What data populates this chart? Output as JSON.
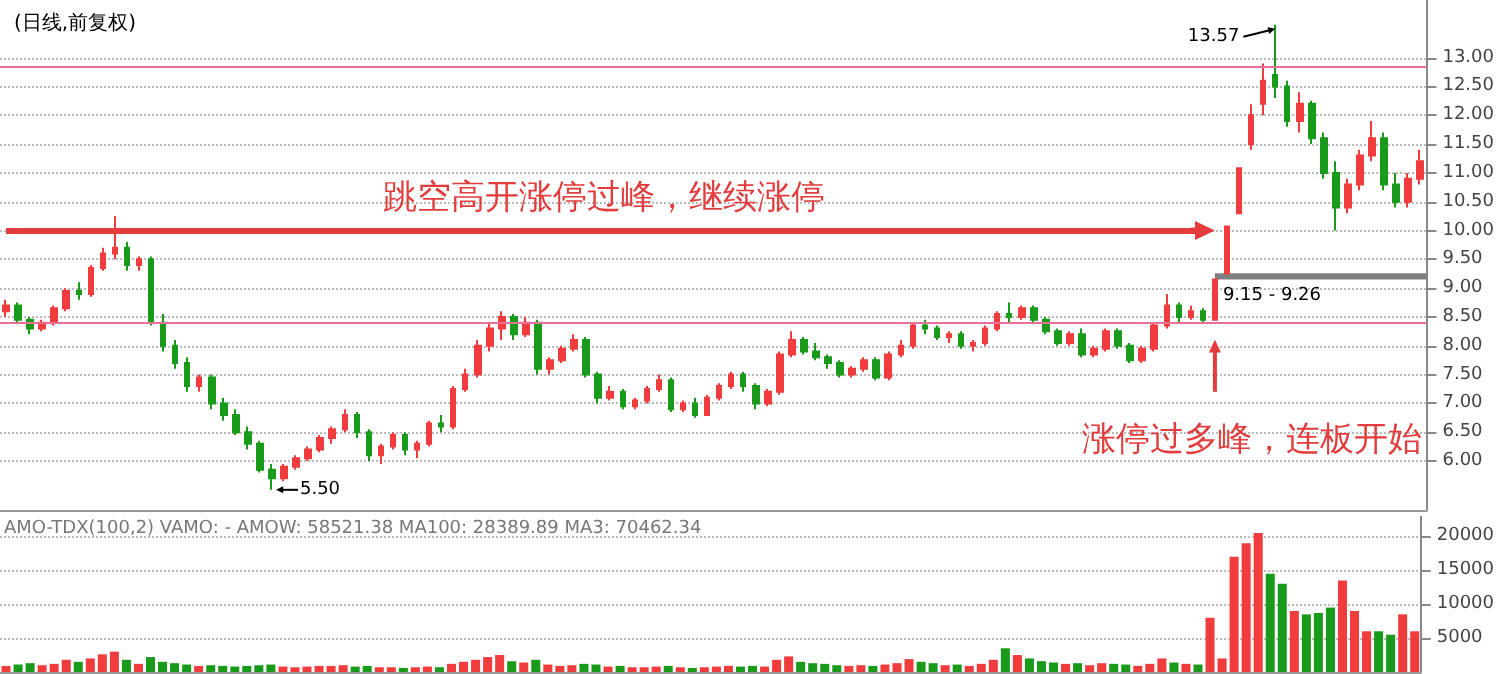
{
  "chart_data": [
    {
      "type": "candlestick",
      "title": "(日线,前复权)",
      "categories": [
        null,
        null,
        null,
        null,
        null,
        null,
        null,
        null,
        null,
        null,
        null,
        null,
        null,
        null,
        null,
        null,
        null,
        null,
        null,
        null,
        null,
        null,
        null,
        null,
        null,
        null,
        null,
        null,
        null,
        null,
        null,
        null,
        null,
        null,
        null,
        null,
        null,
        null,
        null,
        null,
        null,
        null,
        null,
        null,
        null,
        null,
        null,
        null,
        null,
        null,
        null,
        null,
        null,
        null,
        null,
        null,
        null,
        null,
        null,
        null,
        null,
        null,
        null,
        null,
        null,
        null,
        null,
        null,
        null,
        null,
        null,
        null,
        null,
        null,
        null,
        null,
        null,
        null,
        null,
        null,
        null,
        null,
        null,
        null,
        null,
        null,
        null,
        null,
        null,
        null,
        null,
        null,
        null,
        null,
        null,
        null,
        null,
        null,
        null,
        null,
        null,
        null,
        null,
        null,
        null,
        null,
        null,
        null,
        null,
        null,
        null,
        null,
        null,
        null,
        null,
        null,
        null,
        null
      ],
      "ohlc": [
        [
          8.6,
          8.8,
          8.5,
          8.7
        ],
        [
          8.7,
          8.75,
          8.4,
          8.45
        ],
        [
          8.45,
          8.5,
          8.2,
          8.3
        ],
        [
          8.3,
          8.45,
          8.25,
          8.4
        ],
        [
          8.4,
          8.7,
          8.35,
          8.65
        ],
        [
          8.65,
          9.0,
          8.6,
          8.95
        ],
        [
          8.95,
          9.1,
          8.8,
          8.9
        ],
        [
          8.9,
          9.4,
          8.85,
          9.35
        ],
        [
          9.35,
          9.7,
          9.3,
          9.6
        ],
        [
          9.6,
          10.25,
          9.5,
          9.7
        ],
        [
          9.7,
          9.8,
          9.3,
          9.4
        ],
        [
          9.4,
          9.55,
          9.3,
          9.5
        ],
        [
          9.5,
          9.55,
          8.35,
          8.4
        ],
        [
          8.4,
          8.55,
          7.9,
          8.0
        ],
        [
          8.0,
          8.1,
          7.6,
          7.7
        ],
        [
          7.7,
          7.8,
          7.2,
          7.3
        ],
        [
          7.3,
          7.5,
          7.2,
          7.45
        ],
        [
          7.45,
          7.5,
          6.9,
          7.0
        ],
        [
          7.0,
          7.1,
          6.7,
          6.8
        ],
        [
          6.8,
          6.9,
          6.45,
          6.5
        ],
        [
          6.5,
          6.6,
          6.2,
          6.3
        ],
        [
          6.3,
          6.35,
          5.8,
          5.85
        ],
        [
          5.85,
          5.95,
          5.5,
          5.7
        ],
        [
          5.7,
          5.95,
          5.65,
          5.9
        ],
        [
          5.9,
          6.1,
          5.85,
          6.05
        ],
        [
          6.05,
          6.25,
          6.0,
          6.2
        ],
        [
          6.2,
          6.45,
          6.15,
          6.4
        ],
        [
          6.4,
          6.6,
          6.3,
          6.55
        ],
        [
          6.55,
          6.9,
          6.5,
          6.8
        ],
        [
          6.8,
          6.85,
          6.4,
          6.5
        ],
        [
          6.5,
          6.55,
          6.0,
          6.1
        ],
        [
          6.1,
          6.3,
          5.95,
          6.25
        ],
        [
          6.25,
          6.5,
          6.2,
          6.45
        ],
        [
          6.45,
          6.5,
          6.1,
          6.2
        ],
        [
          6.2,
          6.35,
          6.05,
          6.3
        ],
        [
          6.3,
          6.7,
          6.25,
          6.65
        ],
        [
          6.65,
          6.8,
          6.5,
          6.6
        ],
        [
          6.6,
          7.3,
          6.55,
          7.25
        ],
        [
          7.25,
          7.6,
          7.2,
          7.5
        ],
        [
          7.5,
          8.1,
          7.45,
          8.0
        ],
        [
          8.0,
          8.4,
          7.9,
          8.3
        ],
        [
          8.3,
          8.6,
          8.1,
          8.5
        ],
        [
          8.5,
          8.55,
          8.1,
          8.2
        ],
        [
          8.2,
          8.5,
          8.15,
          8.4
        ],
        [
          8.4,
          8.45,
          7.5,
          7.6
        ],
        [
          7.6,
          7.8,
          7.5,
          7.75
        ],
        [
          7.75,
          8.0,
          7.7,
          7.95
        ],
        [
          7.95,
          8.2,
          7.9,
          8.1
        ],
        [
          8.1,
          8.15,
          7.45,
          7.5
        ],
        [
          7.5,
          7.55,
          7.0,
          7.1
        ],
        [
          7.1,
          7.3,
          7.05,
          7.2
        ],
        [
          7.2,
          7.25,
          6.9,
          6.95
        ],
        [
          6.95,
          7.1,
          6.9,
          7.05
        ],
        [
          7.05,
          7.3,
          7.0,
          7.25
        ],
        [
          7.25,
          7.5,
          7.2,
          7.4
        ],
        [
          7.4,
          7.45,
          6.85,
          6.9
        ],
        [
          6.9,
          7.05,
          6.85,
          7.0
        ],
        [
          7.0,
          7.1,
          6.75,
          6.8
        ],
        [
          6.8,
          7.15,
          6.8,
          7.1
        ],
        [
          7.1,
          7.35,
          7.05,
          7.3
        ],
        [
          7.3,
          7.55,
          7.25,
          7.5
        ],
        [
          7.5,
          7.55,
          7.2,
          7.3
        ],
        [
          7.3,
          7.35,
          6.9,
          7.0
        ],
        [
          7.0,
          7.25,
          6.95,
          7.2
        ],
        [
          7.2,
          7.9,
          7.15,
          7.85
        ],
        [
          7.85,
          8.25,
          7.8,
          8.1
        ],
        [
          8.1,
          8.15,
          7.85,
          7.9
        ],
        [
          7.9,
          8.05,
          7.75,
          7.8
        ],
        [
          7.8,
          7.85,
          7.6,
          7.7
        ],
        [
          7.7,
          7.75,
          7.45,
          7.5
        ],
        [
          7.5,
          7.65,
          7.45,
          7.6
        ],
        [
          7.6,
          7.8,
          7.55,
          7.75
        ],
        [
          7.75,
          7.8,
          7.4,
          7.45
        ],
        [
          7.45,
          7.9,
          7.4,
          7.85
        ],
        [
          7.85,
          8.1,
          7.8,
          8.0
        ],
        [
          8.0,
          8.4,
          7.95,
          8.35
        ],
        [
          8.35,
          8.45,
          8.2,
          8.3
        ],
        [
          8.3,
          8.35,
          8.1,
          8.15
        ],
        [
          8.15,
          8.25,
          8.05,
          8.2
        ],
        [
          8.2,
          8.25,
          7.95,
          8.0
        ],
        [
          8.0,
          8.1,
          7.9,
          8.05
        ],
        [
          8.05,
          8.35,
          8.0,
          8.3
        ],
        [
          8.3,
          8.6,
          8.25,
          8.55
        ],
        [
          8.55,
          8.75,
          8.4,
          8.5
        ],
        [
          8.5,
          8.7,
          8.45,
          8.65
        ],
        [
          8.65,
          8.7,
          8.4,
          8.45
        ],
        [
          8.45,
          8.5,
          8.2,
          8.25
        ],
        [
          8.25,
          8.3,
          8.0,
          8.05
        ],
        [
          8.05,
          8.25,
          8.0,
          8.2
        ],
        [
          8.2,
          8.3,
          7.8,
          7.85
        ],
        [
          7.85,
          8.0,
          7.8,
          7.95
        ],
        [
          7.95,
          8.3,
          7.9,
          8.25
        ],
        [
          8.25,
          8.3,
          7.95,
          8.0
        ],
        [
          8.0,
          8.05,
          7.7,
          7.75
        ],
        [
          7.75,
          8.0,
          7.7,
          7.95
        ],
        [
          7.95,
          8.4,
          7.9,
          8.35
        ],
        [
          8.35,
          8.9,
          8.3,
          8.7
        ],
        [
          8.7,
          8.75,
          8.4,
          8.5
        ],
        [
          8.5,
          8.7,
          8.45,
          8.6
        ],
        [
          8.6,
          8.65,
          8.4,
          8.45
        ],
        [
          8.45,
          9.15,
          8.45,
          9.15
        ],
        [
          9.26,
          10.07,
          9.26,
          10.07
        ],
        [
          10.3,
          11.08,
          10.3,
          11.08
        ],
        [
          11.5,
          12.19,
          11.4,
          12.0
        ],
        [
          12.2,
          12.9,
          12.0,
          12.6
        ],
        [
          12.7,
          13.57,
          12.3,
          12.5
        ],
        [
          12.5,
          12.6,
          11.8,
          11.9
        ],
        [
          11.9,
          12.4,
          11.7,
          12.2
        ],
        [
          12.2,
          12.25,
          11.5,
          11.6
        ],
        [
          11.6,
          11.7,
          10.9,
          11.0
        ],
        [
          11.0,
          11.2,
          10.0,
          10.4
        ],
        [
          10.4,
          10.9,
          10.3,
          10.8
        ],
        [
          10.8,
          11.4,
          10.7,
          11.3
        ],
        [
          11.3,
          11.9,
          11.2,
          11.6
        ],
        [
          11.6,
          11.7,
          10.7,
          10.8
        ],
        [
          10.8,
          11.0,
          10.4,
          10.5
        ],
        [
          10.5,
          11.0,
          10.4,
          10.9
        ],
        [
          10.9,
          11.4,
          10.8,
          11.2
        ]
      ],
      "colors": [
        "#f03c3c",
        "#1a9a1a",
        "#1a9a1a",
        "#f03c3c",
        "#f03c3c",
        "#f03c3c",
        "#1a9a1a",
        "#f03c3c",
        "#f03c3c",
        "#f03c3c",
        "#1a9a1a",
        "#f03c3c",
        "#1a9a1a",
        "#1a9a1a",
        "#1a9a1a",
        "#1a9a1a",
        "#f03c3c",
        "#1a9a1a",
        "#1a9a1a",
        "#1a9a1a",
        "#1a9a1a",
        "#1a9a1a",
        "#1a9a1a",
        "#f03c3c",
        "#f03c3c",
        "#f03c3c",
        "#f03c3c",
        "#f03c3c",
        "#f03c3c",
        "#1a9a1a",
        "#1a9a1a",
        "#f03c3c",
        "#f03c3c",
        "#1a9a1a",
        "#f03c3c",
        "#f03c3c",
        "#1a9a1a",
        "#f03c3c",
        "#f03c3c",
        "#f03c3c",
        "#f03c3c",
        "#f03c3c",
        "#1a9a1a",
        "#f03c3c",
        "#1a9a1a",
        "#f03c3c",
        "#f03c3c",
        "#f03c3c",
        "#1a9a1a",
        "#1a9a1a",
        "#f03c3c",
        "#1a9a1a",
        "#f03c3c",
        "#f03c3c",
        "#f03c3c",
        "#1a9a1a",
        "#f03c3c",
        "#1a9a1a",
        "#f03c3c",
        "#f03c3c",
        "#f03c3c",
        "#1a9a1a",
        "#1a9a1a",
        "#f03c3c",
        "#f03c3c",
        "#f03c3c",
        "#1a9a1a",
        "#1a9a1a",
        "#1a9a1a",
        "#1a9a1a",
        "#f03c3c",
        "#f03c3c",
        "#1a9a1a",
        "#f03c3c",
        "#f03c3c",
        "#f03c3c",
        "#1a9a1a",
        "#1a9a1a",
        "#f03c3c",
        "#1a9a1a",
        "#f03c3c",
        "#f03c3c",
        "#f03c3c",
        "#1a9a1a",
        "#f03c3c",
        "#1a9a1a",
        "#1a9a1a",
        "#1a9a1a",
        "#f03c3c",
        "#1a9a1a",
        "#f03c3c",
        "#f03c3c",
        "#1a9a1a",
        "#1a9a1a",
        "#f03c3c",
        "#f03c3c",
        "#f03c3c",
        "#1a9a1a",
        "#f03c3c",
        "#1a9a1a",
        "#f03c3c",
        "#f03c3c",
        "#f03c3c",
        "#f03c3c",
        "#f03c3c",
        "#1a9a1a",
        "#1a9a1a",
        "#f03c3c",
        "#1a9a1a",
        "#1a9a1a",
        "#1a9a1a",
        "#f03c3c",
        "#f03c3c",
        "#f03c3c",
        "#1a9a1a",
        "#1a9a1a",
        "#f03c3c",
        "#f03c3c"
      ],
      "ylim": [
        5.15,
        14
      ],
      "yticks": [
        {
          "value": 6,
          "label": "6.00"
        },
        {
          "value": 6.5,
          "label": "6.50"
        },
        {
          "value": 7,
          "label": "7.00"
        },
        {
          "value": 7.5,
          "label": "7.50"
        },
        {
          "value": 8,
          "label": "8.00"
        },
        {
          "value": 8.5,
          "label": "8.50"
        },
        {
          "value": 9,
          "label": "9.00"
        },
        {
          "value": 9.5,
          "label": "9.50"
        },
        {
          "value": 10,
          "label": "10.00"
        },
        {
          "value": 10.5,
          "label": "10.50"
        },
        {
          "value": 11,
          "label": "11.00"
        },
        {
          "value": 11.5,
          "label": "11.50"
        },
        {
          "value": 12,
          "label": "12.00"
        },
        {
          "value": 12.5,
          "label": "12.50"
        },
        {
          "value": 13,
          "label": "13.00"
        }
      ],
      "grid": "y",
      "tick_labels": "y",
      "ref_lines": [
        {
          "axis": "y",
          "value": 12.83,
          "color": "#e8709a"
        },
        {
          "axis": "y",
          "value": 10.0,
          "color": "#e23c3c",
          "label": "跳空高开涨停过峰，继续涨停"
        },
        {
          "axis": "y",
          "value": 8.4,
          "color": "#e8709a"
        }
      ],
      "bands": [
        {
          "axis": "y",
          "from": 9.15,
          "to": 9.26,
          "label": "9.15 - 9.26",
          "color": "#808080"
        }
      ],
      "annotations": [
        "13.57",
        "5.50",
        "涨停过多峰，连板开始"
      ]
    },
    {
      "type": "bar",
      "categories": [
        null,
        null,
        null,
        null,
        null,
        null,
        null,
        null,
        null,
        null,
        null,
        null,
        null,
        null,
        null,
        null,
        null,
        null,
        null,
        null,
        null,
        null,
        null,
        null,
        null,
        null,
        null,
        null,
        null,
        null,
        null,
        null,
        null,
        null,
        null,
        null,
        null,
        null,
        null,
        null,
        null,
        null,
        null,
        null,
        null,
        null,
        null,
        null,
        null,
        null,
        null,
        null,
        null,
        null,
        null,
        null,
        null,
        null,
        null,
        null,
        null,
        null,
        null,
        null,
        null,
        null,
        null,
        null,
        null,
        null,
        null,
        null,
        null,
        null,
        null,
        null,
        null,
        null,
        null,
        null,
        null,
        null,
        null,
        null,
        null,
        null,
        null,
        null,
        null,
        null,
        null,
        null,
        null,
        null,
        null,
        null,
        null,
        null,
        null,
        null,
        null,
        null,
        null,
        null,
        null,
        null,
        null,
        null,
        null,
        null,
        null,
        null,
        null,
        null,
        null,
        null,
        null,
        null
      ],
      "values": [
        900,
        1100,
        1300,
        1000,
        1200,
        1800,
        1500,
        2000,
        2600,
        3000,
        1800,
        1200,
        2200,
        1500,
        1300,
        1100,
        900,
        1000,
        900,
        800,
        900,
        1000,
        1100,
        800,
        700,
        800,
        900,
        900,
        1000,
        800,
        900,
        700,
        700,
        600,
        700,
        800,
        700,
        1200,
        1500,
        1800,
        2200,
        2500,
        1600,
        1400,
        1800,
        1100,
        900,
        1000,
        1200,
        1100,
        800,
        900,
        700,
        700,
        800,
        900,
        700,
        600,
        700,
        800,
        900,
        800,
        900,
        800,
        1800,
        2300,
        1500,
        1300,
        1200,
        1000,
        900,
        1000,
        900,
        1100,
        1300,
        1900,
        1500,
        1300,
        1000,
        1100,
        900,
        1200,
        1800,
        3500,
        2500,
        2000,
        1600,
        1400,
        1200,
        1300,
        1000,
        1300,
        1200,
        1100,
        900,
        1200,
        2000,
        1400,
        1200,
        1100,
        8000,
        2000,
        17000,
        19000,
        20500,
        14500,
        13000,
        9000,
        8500,
        8700,
        9500,
        13500,
        9000,
        6000,
        6000,
        5500,
        8500,
        6000
      ],
      "colors": [
        "#f03c3c",
        "#1a9a1a",
        "#1a9a1a",
        "#f03c3c",
        "#f03c3c",
        "#f03c3c",
        "#1a9a1a",
        "#f03c3c",
        "#f03c3c",
        "#f03c3c",
        "#1a9a1a",
        "#f03c3c",
        "#1a9a1a",
        "#1a9a1a",
        "#1a9a1a",
        "#1a9a1a",
        "#f03c3c",
        "#1a9a1a",
        "#1a9a1a",
        "#1a9a1a",
        "#1a9a1a",
        "#1a9a1a",
        "#1a9a1a",
        "#f03c3c",
        "#f03c3c",
        "#f03c3c",
        "#f03c3c",
        "#f03c3c",
        "#f03c3c",
        "#1a9a1a",
        "#1a9a1a",
        "#f03c3c",
        "#f03c3c",
        "#1a9a1a",
        "#f03c3c",
        "#f03c3c",
        "#1a9a1a",
        "#f03c3c",
        "#f03c3c",
        "#f03c3c",
        "#f03c3c",
        "#f03c3c",
        "#1a9a1a",
        "#f03c3c",
        "#1a9a1a",
        "#f03c3c",
        "#f03c3c",
        "#f03c3c",
        "#1a9a1a",
        "#1a9a1a",
        "#f03c3c",
        "#1a9a1a",
        "#f03c3c",
        "#f03c3c",
        "#f03c3c",
        "#1a9a1a",
        "#f03c3c",
        "#1a9a1a",
        "#f03c3c",
        "#f03c3c",
        "#f03c3c",
        "#1a9a1a",
        "#1a9a1a",
        "#f03c3c",
        "#f03c3c",
        "#f03c3c",
        "#1a9a1a",
        "#1a9a1a",
        "#1a9a1a",
        "#1a9a1a",
        "#f03c3c",
        "#f03c3c",
        "#1a9a1a",
        "#f03c3c",
        "#f03c3c",
        "#f03c3c",
        "#1a9a1a",
        "#1a9a1a",
        "#f03c3c",
        "#1a9a1a",
        "#f03c3c",
        "#f03c3c",
        "#f03c3c",
        "#1a9a1a",
        "#f03c3c",
        "#1a9a1a",
        "#1a9a1a",
        "#1a9a1a",
        "#f03c3c",
        "#1a9a1a",
        "#f03c3c",
        "#f03c3c",
        "#1a9a1a",
        "#1a9a1a",
        "#f03c3c",
        "#f03c3c",
        "#f03c3c",
        "#1a9a1a",
        "#f03c3c",
        "#1a9a1a",
        "#f03c3c",
        "#f03c3c",
        "#f03c3c",
        "#f03c3c",
        "#f03c3c",
        "#1a9a1a",
        "#1a9a1a",
        "#f03c3c",
        "#1a9a1a",
        "#1a9a1a",
        "#1a9a1a",
        "#f03c3c",
        "#f03c3c",
        "#f03c3c",
        "#1a9a1a",
        "#1a9a1a",
        "#f03c3c",
        "#f03c3c"
      ],
      "ylim": [
        0,
        23000
      ],
      "yticks": [
        5000,
        10000,
        15000,
        20000
      ],
      "grid": "y",
      "tick_labels": "y",
      "annotations": [
        "AMO-TDX(100,2) VAMO: - AMOW: 58521.38 MA100: 28389.89 MA3: 70462.34"
      ]
    }
  ]
}
